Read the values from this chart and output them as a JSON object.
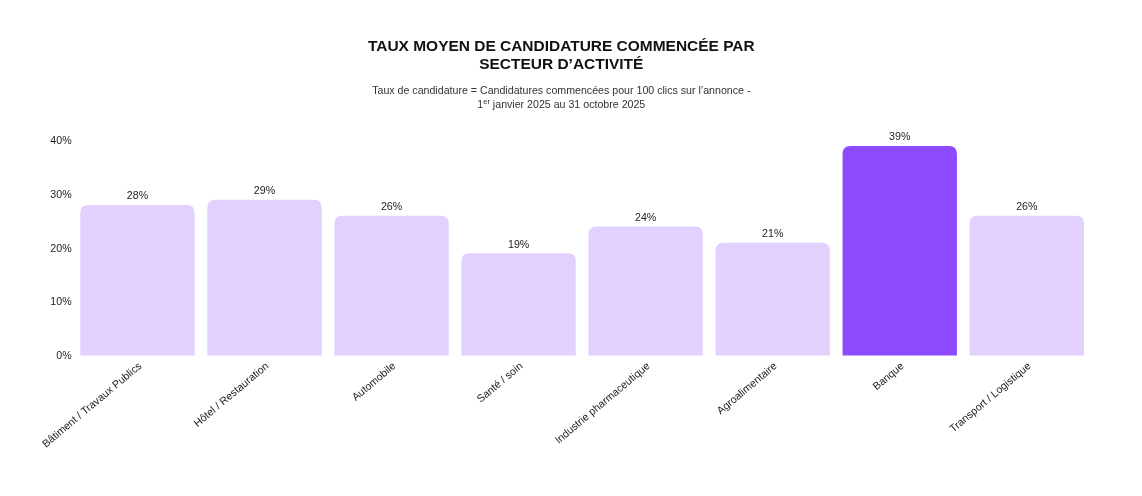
{
  "chart_data": {
    "type": "bar",
    "title": "TAUX MOYEN DE CANDIDATURE COMMENCÉE PAR SECTEUR D’ACTIVITÉ",
    "subtitle": "Taux de candidature = Candidatures commencées pour 100 clics sur l’annonce - 1$^{er}$ janvier 2025 au 31 octobre 2025",
    "categories": [
      "Bâtiment / Travaux Publics",
      "Hôtel / Restauration",
      "Automobile",
      "Santé / soin",
      "Industrie pharmaceutique",
      "Agroalimentaire",
      "Banque",
      "Transport / Logistique"
    ],
    "values": [
      28,
      29,
      26,
      19,
      24,
      21,
      39,
      26
    ],
    "colors": [
      "#e2d1ff",
      "#e2d1ff",
      "#e2d1ff",
      "#e2d1ff",
      "#e2d1ff",
      "#e2d1ff",
      "#8c4bff",
      "#e2d1ff"
    ],
    "ylim": [
      0,
      40
    ],
    "yticks": [
      {
        "value": 0,
        "label": "0%"
      },
      {
        "value": 10,
        "label": "10%"
      },
      {
        "value": 20,
        "label": "20%"
      },
      {
        "value": 30,
        "label": "30%"
      },
      {
        "value": 40,
        "label": "40%"
      }
    ],
    "value_labels": [
      "28%",
      "29%",
      "26%",
      "19%",
      "24%",
      "21%",
      "39%",
      "26%"
    ],
    "grid": false
  }
}
